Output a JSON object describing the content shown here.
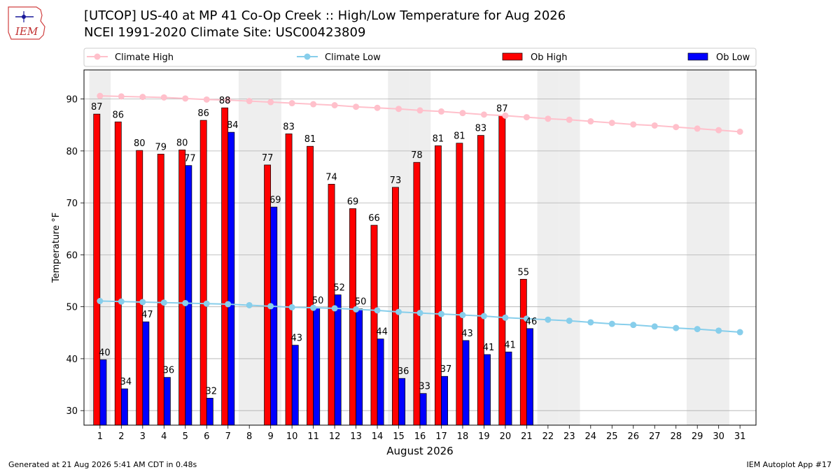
{
  "header": {
    "logo_text": "IEM",
    "title": "[UTCOP] US-40 at MP 41 Co-Op Creek  :: High/Low Temperature for Aug 2026",
    "subtitle": "NCEI 1991-2020 Climate Site: USC00423809"
  },
  "footer": {
    "generated": "Generated at 21 Aug 2026 5:41 AM CDT in 0.48s",
    "app": "IEM Autoplot App #17"
  },
  "chart_data": {
    "type": "bar",
    "xlabel": "August 2026",
    "ylabel": "Temperature °F",
    "ylim": [
      27.2,
      95.6
    ],
    "yticks": [
      30,
      40,
      50,
      60,
      70,
      80,
      90
    ],
    "grid": true,
    "legend_placement": "top",
    "weekend_shading_days": [
      1,
      8,
      9,
      15,
      16,
      22,
      23,
      29,
      30
    ],
    "x": [
      1,
      2,
      3,
      4,
      5,
      6,
      7,
      8,
      9,
      10,
      11,
      12,
      13,
      14,
      15,
      16,
      17,
      18,
      19,
      20,
      21,
      22,
      23,
      24,
      25,
      26,
      27,
      28,
      29,
      30,
      31
    ],
    "series": [
      {
        "name": "Climate High",
        "type": "line",
        "color": "#ffc0cb",
        "values": [
          90.6,
          90.5,
          90.4,
          90.3,
          90.1,
          89.9,
          89.8,
          89.6,
          89.4,
          89.2,
          89.0,
          88.8,
          88.5,
          88.3,
          88.1,
          87.8,
          87.6,
          87.3,
          87.0,
          86.8,
          86.5,
          86.2,
          86.0,
          85.7,
          85.4,
          85.1,
          84.9,
          84.6,
          84.3,
          84.0,
          83.7
        ]
      },
      {
        "name": "Climate Low",
        "type": "line",
        "color": "#87ceeb",
        "values": [
          51.1,
          51.0,
          50.9,
          50.8,
          50.7,
          50.6,
          50.5,
          50.3,
          50.1,
          49.9,
          49.8,
          49.7,
          49.5,
          49.3,
          49.0,
          48.8,
          48.6,
          48.4,
          48.2,
          47.9,
          47.7,
          47.5,
          47.3,
          47.0,
          46.7,
          46.5,
          46.2,
          45.9,
          45.7,
          45.4,
          45.1
        ]
      },
      {
        "name": "Ob High",
        "type": "bar",
        "color": "#ff0000",
        "values": [
          87.1,
          85.6,
          80.1,
          79.4,
          80.2,
          85.9,
          88.3,
          null,
          77.3,
          83.3,
          80.9,
          73.6,
          68.9,
          65.7,
          73.0,
          77.8,
          81.0,
          81.5,
          83.0,
          86.8,
          55.3,
          null,
          null,
          null,
          null,
          null,
          null,
          null,
          null,
          null,
          null
        ],
        "labels": [
          "87",
          "86",
          "80",
          "79",
          "80",
          "86",
          "88",
          "",
          "77",
          "83",
          "81",
          "74",
          "69",
          "66",
          "73",
          "78",
          "81",
          "81",
          "83",
          "87",
          "55",
          "",
          "",
          "",
          "",
          "",
          "",
          "",
          "",
          "",
          ""
        ]
      },
      {
        "name": "Ob Low",
        "type": "bar",
        "color": "#0000ff",
        "values": [
          39.8,
          34.2,
          47.1,
          36.4,
          77.2,
          32.4,
          83.6,
          null,
          69.2,
          42.6,
          49.8,
          52.3,
          49.6,
          43.8,
          36.2,
          33.3,
          36.6,
          43.5,
          40.8,
          41.3,
          45.8,
          null,
          null,
          null,
          null,
          null,
          null,
          null,
          null,
          null,
          null
        ],
        "labels": [
          "40",
          "34",
          "47",
          "36",
          "77",
          "32",
          "84",
          "",
          "69",
          "43",
          "50",
          "52",
          "50",
          "44",
          "36",
          "33",
          "37",
          "43",
          "41",
          "41",
          "46",
          "",
          "",
          "",
          "",
          "",
          "",
          "",
          "",
          "",
          ""
        ]
      }
    ]
  }
}
